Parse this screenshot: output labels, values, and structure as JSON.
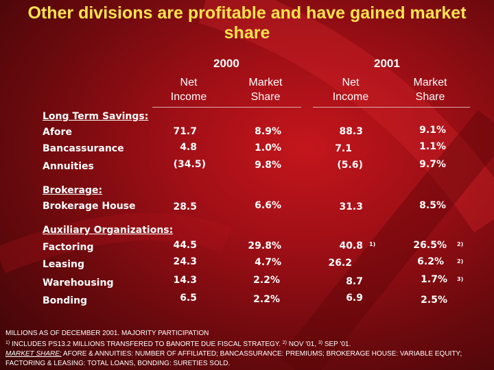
{
  "title": "Other divisions are profitable and  have gained market share",
  "years": {
    "y2000": "2000",
    "y2001": "2001"
  },
  "column_headers": {
    "net_income_line1": "Net",
    "net_income_line2": "Income",
    "market_share_line1": "Market",
    "market_share_line2": "Share"
  },
  "sections": {
    "long_term_savings": "Long Term Savings:",
    "brokerage": "Brokerage:",
    "auxiliary": "Auxiliary Organizations:"
  },
  "rows": [
    {
      "label": "Afore",
      "ni_2000": "71.7",
      "ms_2000": "8.9%",
      "ni_2001": "88.3",
      "ms_2001": "9.1%"
    },
    {
      "label": "Bancassurance",
      "ni_2000": "4.8",
      "ms_2000": "1.0%",
      "ni_2001": "7.1",
      "ms_2001": "1.1%"
    },
    {
      "label": "Annuities",
      "ni_2000": "(34.5)",
      "ms_2000": "9.8%",
      "ni_2001": "(5.6)",
      "ms_2001": "9.7%"
    },
    {
      "label": "Brokerage House",
      "ni_2000": "28.5",
      "ms_2000": "6.6%",
      "ni_2001": "31.3",
      "ms_2001": "8.5%"
    },
    {
      "label": "Factoring",
      "ni_2000": "44.5",
      "ms_2000": "29.8%",
      "ni_2001": "40.8",
      "ni_2001_note": "1)",
      "ms_2001": "26.5%",
      "ms_2001_note": "2)"
    },
    {
      "label": "Leasing",
      "ni_2000": "24.3",
      "ms_2000": "4.7%",
      "ni_2001": "26.2",
      "ms_2001": "6.2%",
      "ms_2001_note": "2)"
    },
    {
      "label": "Warehousing",
      "ni_2000": "14.3",
      "ms_2000": "2.2%",
      "ni_2001": "8.7",
      "ms_2001": "1.7%",
      "ms_2001_note": "3)"
    },
    {
      "label": "Bonding",
      "ni_2000": "6.5",
      "ms_2000": "2.2%",
      "ni_2001": "6.9",
      "ms_2001": "2.5%"
    }
  ],
  "footer": {
    "line1": "MILLIONS AS OF DECEMBER 2001. MAJORITY PARTICIPATION",
    "note1_mark": "1)",
    "note1_text": " INCLUDES PS13.2 MILLIONS TRANSFERED TO BANORTE DUE FISCAL STRATEGY. ",
    "note2_mark": "2)",
    "note2_text": " NOV '01, ",
    "note3_mark": "3)",
    "note3_text": " SEP '01.",
    "market_share_label": "MARKET SHARE:",
    "market_share_text": " AFORE & ANNUITIES: NUMBER OF AFFILIATED; BANCASSURANCE: PREMIUMS; BROKERAGE HOUSE: VARIABLE EQUITY; FACTORING & LEASING: TOTAL LOANS, BONDING: SURETIES SOLD."
  },
  "colors": {
    "background": "#a10f16",
    "title": "#ffe44d",
    "text": "#ffffff"
  }
}
